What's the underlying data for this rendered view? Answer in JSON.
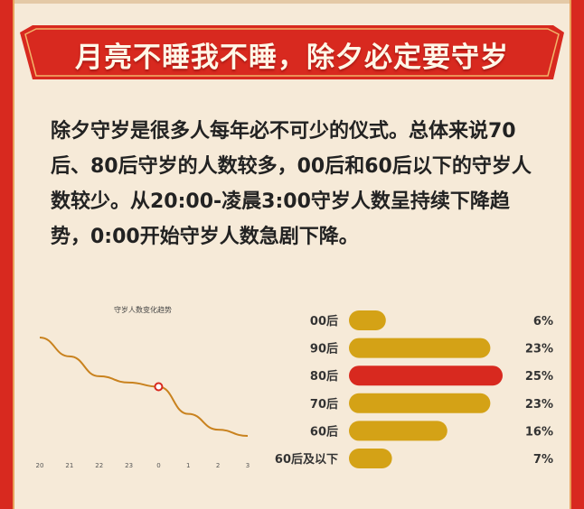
{
  "banner": {
    "title": "月亮不睡我不睡，除夕必定要守岁"
  },
  "intro": {
    "text": "除夕守岁是很多人每年必不可少的仪式。总体来说70后、80后守岁的人数较多，00后和60后以下的守岁人数较少。从20:00-凌晨3:00守岁人数呈持续下降趋势，0:00开始守岁人数急剧下降。"
  },
  "colors": {
    "red": "#d8291f",
    "gold": "#d4a216",
    "line": "#c9821e",
    "background": "#f6ead8"
  },
  "chart_data": [
    {
      "type": "line",
      "title": "守岁人数变化趋势",
      "x": [
        "20",
        "21",
        "22",
        "23",
        "0",
        "1",
        "2",
        "3"
      ],
      "values": [
        100,
        82,
        63,
        57,
        53,
        27,
        12,
        6
      ],
      "highlight_index": 4,
      "ylim": [
        0,
        100
      ]
    },
    {
      "type": "bar",
      "orientation": "horizontal",
      "categories": [
        "00后",
        "90后",
        "80后",
        "70后",
        "60后",
        "60后及以下"
      ],
      "values": [
        6,
        23,
        25,
        23,
        16,
        7
      ],
      "labels": [
        "6%",
        "23%",
        "25%",
        "23%",
        "16%",
        "7%"
      ],
      "highlight_category": "80后"
    }
  ]
}
